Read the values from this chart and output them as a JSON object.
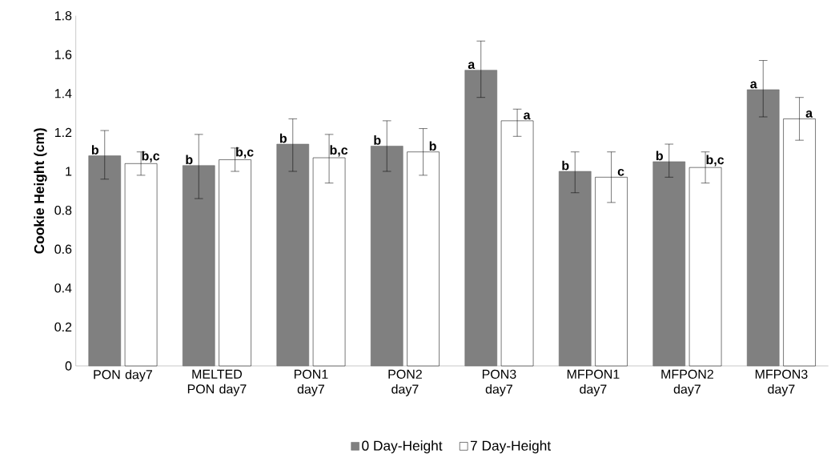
{
  "chart_data": {
    "type": "bar",
    "ylabel": "Cookie Height (cm)",
    "categories": [
      "PON day7",
      "MELTED PON day7",
      "PON1 day7",
      "PON2 day7",
      "PON3 day7",
      "MFPON1 day7",
      "MFPON2 day7",
      "MFPON3 day7"
    ],
    "series": [
      {
        "name": "0 Day-Height",
        "color": "#808080",
        "values": [
          1.08,
          1.03,
          1.14,
          1.13,
          1.52,
          1.0,
          1.05,
          1.42
        ],
        "errors": [
          [
            0.96,
            1.21
          ],
          [
            0.86,
            1.19
          ],
          [
            1.0,
            1.27
          ],
          [
            1.0,
            1.26
          ],
          [
            1.38,
            1.67
          ],
          [
            0.89,
            1.1
          ],
          [
            0.97,
            1.14
          ],
          [
            1.28,
            1.57
          ]
        ],
        "value_labels": [
          "b",
          "b",
          "b",
          "b",
          "a",
          "b",
          "b",
          "a"
        ]
      },
      {
        "name": "7 Day-Height",
        "color": "#ffffff",
        "values": [
          1.04,
          1.06,
          1.07,
          1.1,
          1.26,
          0.97,
          1.02,
          1.27
        ],
        "errors": [
          [
            0.98,
            1.1
          ],
          [
            1.0,
            1.12
          ],
          [
            0.94,
            1.19
          ],
          [
            0.98,
            1.22
          ],
          [
            1.18,
            1.32
          ],
          [
            0.84,
            1.1
          ],
          [
            0.94,
            1.1
          ],
          [
            1.16,
            1.38
          ]
        ],
        "value_labels": [
          "b,c",
          "b,c",
          "b,c",
          "b",
          "a",
          "c",
          "b,c",
          "a"
        ]
      }
    ],
    "ylim": [
      0,
      1.8
    ],
    "yticks": [
      0,
      0.2,
      0.4,
      0.6,
      0.8,
      1,
      1.2,
      1.4,
      1.6,
      1.8
    ],
    "grid": false,
    "legend": "bottom"
  }
}
